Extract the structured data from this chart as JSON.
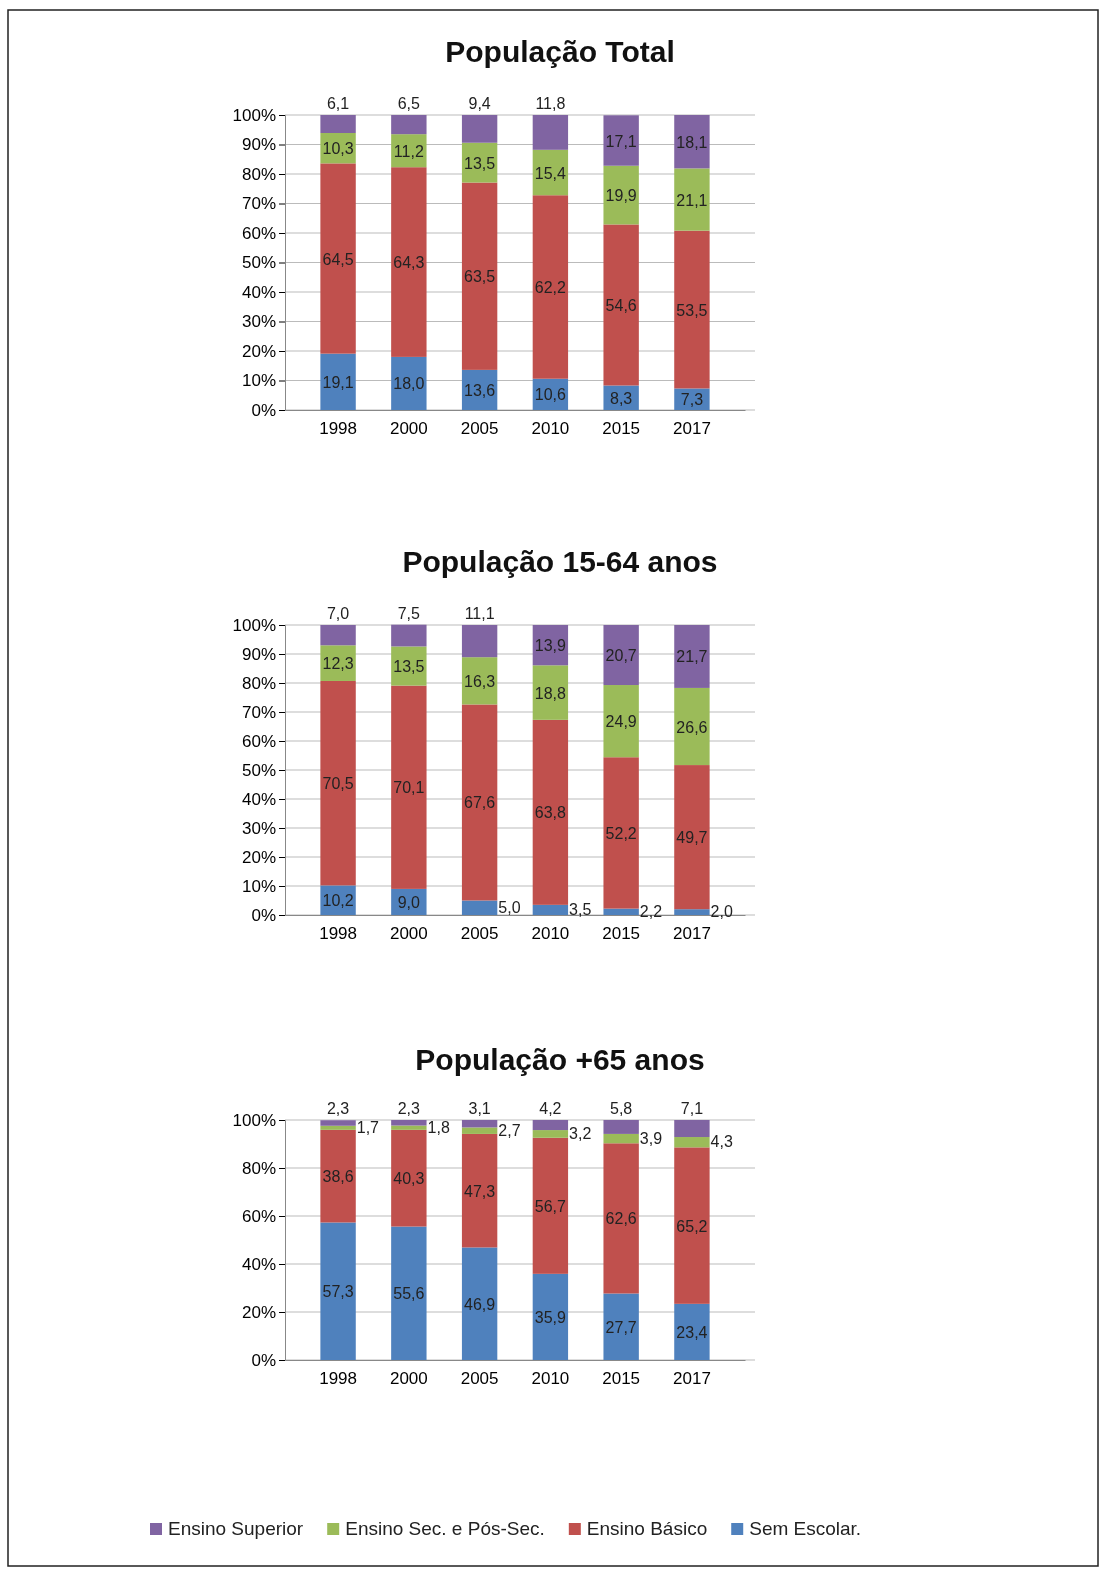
{
  "chart_data": [
    {
      "type": "bar",
      "title": "População Total",
      "stacked": true,
      "categories": [
        "1998",
        "2000",
        "2005",
        "2010",
        "2015",
        "2017"
      ],
      "ylim": [
        0,
        100
      ],
      "yticks": [
        {
          "value": 0,
          "label": "0%"
        },
        {
          "value": 10,
          "label": "10%"
        },
        {
          "value": 20,
          "label": "20%"
        },
        {
          "value": 30,
          "label": "30%"
        },
        {
          "value": 40,
          "label": "40%"
        },
        {
          "value": 50,
          "label": "50%"
        },
        {
          "value": 60,
          "label": "60%"
        },
        {
          "value": 70,
          "label": "70%"
        },
        {
          "value": 80,
          "label": "80%"
        },
        {
          "value": 90,
          "label": "90%"
        },
        {
          "value": 100,
          "label": "100%"
        }
      ],
      "grid": "y",
      "series": [
        {
          "color": "#4f81bd",
          "values": [
            19.1,
            18.0,
            13.6,
            10.6,
            8.3,
            7.3
          ],
          "value_labels": [
            "19,1",
            "18,0",
            "13,6",
            "10,6",
            "8,3",
            "7,3"
          ]
        },
        {
          "color": "#c0504d",
          "values": [
            64.5,
            64.3,
            63.5,
            62.2,
            54.6,
            53.5
          ],
          "value_labels": [
            "64,5",
            "64,3",
            "63,5",
            "62,2",
            "54,6",
            "53,5"
          ]
        },
        {
          "color": "#9bbb59",
          "values": [
            10.3,
            11.2,
            13.5,
            15.4,
            19.9,
            21.1
          ],
          "value_labels": [
            "10,3",
            "11,2",
            "13,5",
            "15,4",
            "19,9",
            "21,1"
          ]
        },
        {
          "color": "#8064a2",
          "values": [
            6.1,
            6.5,
            9.4,
            11.8,
            17.1,
            18.1
          ],
          "value_labels": [
            "6,1",
            "6,5",
            "9,4",
            "11,8",
            "17,1",
            "18,1"
          ]
        }
      ]
    },
    {
      "type": "bar",
      "title": "População 15-64 anos",
      "stacked": true,
      "categories": [
        "1998",
        "2000",
        "2005",
        "2010",
        "2015",
        "2017"
      ],
      "ylim": [
        0,
        100
      ],
      "yticks": [
        {
          "value": 0,
          "label": "0%"
        },
        {
          "value": 10,
          "label": "10%"
        },
        {
          "value": 20,
          "label": "20%"
        },
        {
          "value": 30,
          "label": "30%"
        },
        {
          "value": 40,
          "label": "40%"
        },
        {
          "value": 50,
          "label": "50%"
        },
        {
          "value": 60,
          "label": "60%"
        },
        {
          "value": 70,
          "label": "70%"
        },
        {
          "value": 80,
          "label": "80%"
        },
        {
          "value": 90,
          "label": "90%"
        },
        {
          "value": 100,
          "label": "100%"
        }
      ],
      "grid": "y",
      "series": [
        {
          "color": "#4f81bd",
          "values": [
            10.2,
            9.0,
            5.0,
            3.5,
            2.2,
            2.0
          ],
          "value_labels": [
            "10,2",
            "9,0",
            "5,0",
            "3,5",
            "2,2",
            "2,0"
          ]
        },
        {
          "color": "#c0504d",
          "values": [
            70.5,
            70.1,
            67.6,
            63.8,
            52.2,
            49.7
          ],
          "value_labels": [
            "70,5",
            "70,1",
            "67,6",
            "63,8",
            "52,2",
            "49,7"
          ]
        },
        {
          "color": "#9bbb59",
          "values": [
            12.3,
            13.5,
            16.3,
            18.8,
            24.9,
            26.6
          ],
          "value_labels": [
            "12,3",
            "13,5",
            "16,3",
            "18,8",
            "24,9",
            "26,6"
          ]
        },
        {
          "color": "#8064a2",
          "values": [
            7.0,
            7.5,
            11.1,
            13.9,
            20.7,
            21.7
          ],
          "value_labels": [
            "7,0",
            "7,5",
            "11,1",
            "13,9",
            "20,7",
            "21,7"
          ]
        }
      ]
    },
    {
      "type": "bar",
      "title": "População +65 anos",
      "stacked": true,
      "categories": [
        "1998",
        "2000",
        "2005",
        "2010",
        "2015",
        "2017"
      ],
      "ylim": [
        0,
        100
      ],
      "yticks": [
        {
          "value": 0,
          "label": "0%"
        },
        {
          "value": 20,
          "label": "20%"
        },
        {
          "value": 40,
          "label": "40%"
        },
        {
          "value": 60,
          "label": "60%"
        },
        {
          "value": 80,
          "label": "80%"
        },
        {
          "value": 100,
          "label": "100%"
        }
      ],
      "grid": "y",
      "legend": "bottom",
      "series": [
        {
          "name": "Sem Escolar.",
          "color": "#4f81bd",
          "values": [
            57.3,
            55.6,
            46.9,
            35.9,
            27.7,
            23.4
          ],
          "value_labels": [
            "57,3",
            "55,6",
            "46,9",
            "35,9",
            "27,7",
            "23,4"
          ]
        },
        {
          "name": "Ensino Básico",
          "color": "#c0504d",
          "values": [
            38.6,
            40.3,
            47.3,
            56.7,
            62.6,
            65.2
          ],
          "value_labels": [
            "38,6",
            "40,3",
            "47,3",
            "56,7",
            "62,6",
            "65,2"
          ]
        },
        {
          "name": "Ensino Sec. e Pós-Sec.",
          "color": "#9bbb59",
          "values": [
            1.7,
            1.8,
            2.7,
            3.2,
            3.9,
            4.3
          ],
          "value_labels": [
            "1,7",
            "1,8",
            "2,7",
            "3,2",
            "3,9",
            "4,3"
          ]
        },
        {
          "name": "Ensino Superior",
          "color": "#8064a2",
          "values": [
            2.3,
            2.3,
            3.1,
            4.2,
            5.8,
            7.1
          ],
          "value_labels": [
            "2,3",
            "2,3",
            "3,1",
            "4,2",
            "5,8",
            "7,1"
          ]
        }
      ]
    }
  ]
}
